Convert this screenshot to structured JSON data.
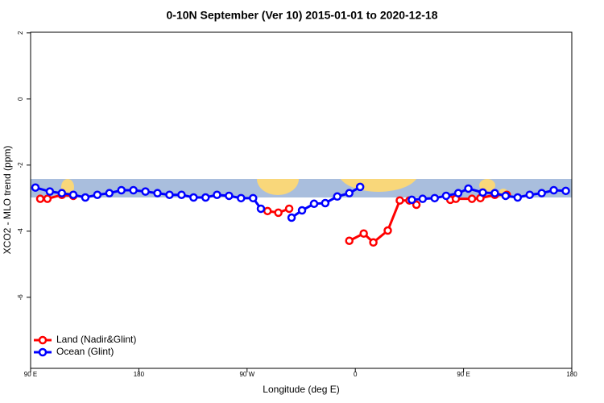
{
  "chart_data": {
    "type": "line",
    "title": "0-10N September (Ver 10)   2015-01-01 to 2020-12-18",
    "x_label": "Longitude (deg E)",
    "y_label": "XCO2 - MLO trend (ppm)",
    "xlim": [
      90,
      540
    ],
    "xticks": [
      {
        "value": 90,
        "label": "90 E"
      },
      {
        "value": 180,
        "label": "180"
      },
      {
        "value": 270,
        "label": "90 W"
      },
      {
        "value": 360,
        "label": "0"
      },
      {
        "value": 450,
        "label": "90 E"
      },
      {
        "value": 540,
        "label": "180"
      }
    ],
    "ylim": [
      -8.15,
      2.02
    ],
    "yticks": [
      2,
      0,
      -2,
      -4,
      -6
    ],
    "legend": "bottom-left",
    "series": [
      {
        "name": "Land (Nadir&Glint)",
        "color": "#ff0000",
        "x": [
          98,
          104,
          116,
          125.5,
          200,
          287,
          296,
          305,
          330,
          355,
          367,
          375,
          387,
          397,
          405,
          410.8,
          425,
          439,
          443.6,
          457,
          464,
          476,
          486
        ],
        "values": [
          -3.02,
          -3.02,
          -2.9,
          -2.93,
          null,
          -3.39,
          -3.44,
          -3.32,
          null,
          -4.29,
          -4.07,
          -4.34,
          -3.98,
          -3.07,
          -3.07,
          -3.2,
          null,
          -3.05,
          -3.02,
          -3.02,
          -3.0,
          -2.9,
          -2.9
        ]
      },
      {
        "name": "Ocean (Glint)",
        "color": "#0000ff",
        "x": [
          94,
          106,
          116,
          125.5,
          135.5,
          145.5,
          155.5,
          165.5,
          175.5,
          185.5,
          195.5,
          205.5,
          215.5,
          225.5,
          235.5,
          245,
          255,
          265,
          275,
          281.5,
          295,
          307,
          315.7,
          325.7,
          335,
          345,
          355,
          364,
          385,
          407,
          416,
          426,
          435.5,
          445.6,
          454,
          466,
          476,
          485,
          495,
          505,
          515,
          525,
          535
        ],
        "values": [
          -2.68,
          -2.8,
          -2.85,
          -2.9,
          -2.98,
          -2.9,
          -2.85,
          -2.76,
          -2.76,
          -2.8,
          -2.85,
          -2.9,
          -2.9,
          -2.98,
          -2.98,
          -2.9,
          -2.93,
          -3.0,
          -3.0,
          -3.32,
          null,
          -3.59,
          -3.37,
          -3.17,
          -3.15,
          -2.95,
          -2.85,
          -2.66,
          null,
          -3.05,
          -3.02,
          -3.0,
          -2.93,
          -2.85,
          -2.71,
          -2.83,
          -2.85,
          -2.93,
          -2.98,
          -2.9,
          -2.85,
          -2.76,
          -2.78
        ]
      }
    ]
  }
}
